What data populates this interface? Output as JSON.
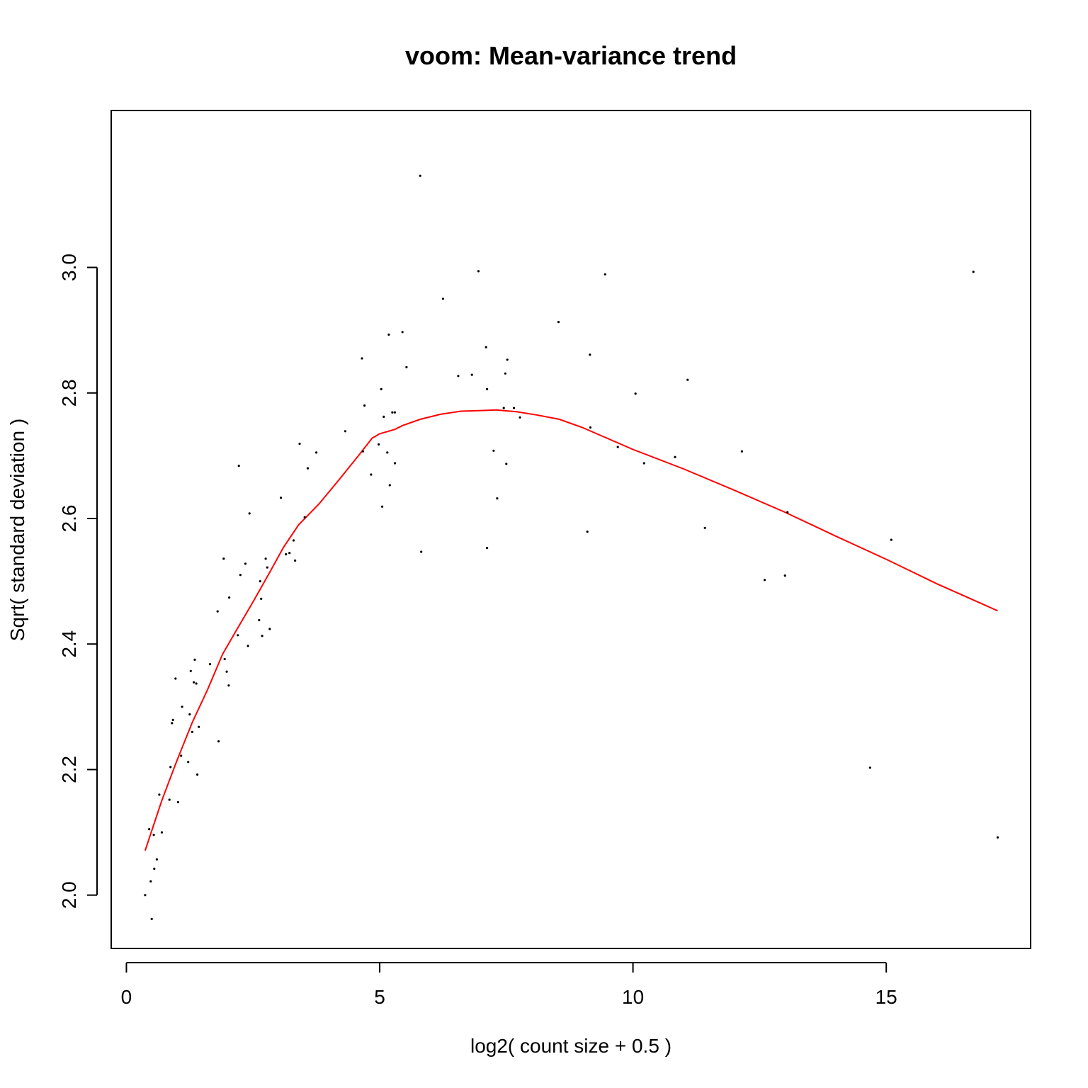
{
  "chart_data": {
    "type": "scatter",
    "title": "voom: Mean-variance trend",
    "xlabel": "log2( count size + 0.5 )",
    "ylabel": "Sqrt( standard deviation )",
    "xlim": [
      -0.3,
      17.85
    ],
    "ylim": [
      1.915,
      3.25
    ],
    "x_ticks": [
      0,
      5,
      10,
      15
    ],
    "y_ticks": [
      2.0,
      2.2,
      2.4,
      2.6,
      2.8,
      3.0
    ],
    "x_tick_labels": [
      "0",
      "5",
      "10",
      "15"
    ],
    "y_tick_labels": [
      "2.0",
      "2.2",
      "2.4",
      "2.6",
      "2.8",
      "3.0"
    ],
    "grid": false,
    "colors": {
      "points": "#000000",
      "trend": "#ff0000"
    },
    "series": [
      {
        "type": "scatter",
        "points": [
          [
            0.37,
            2.0
          ],
          [
            0.45,
            2.105
          ],
          [
            0.48,
            2.022
          ],
          [
            0.5,
            1.962
          ],
          [
            0.54,
            2.096
          ],
          [
            0.55,
            2.042
          ],
          [
            0.6,
            2.057
          ],
          [
            0.65,
            2.16
          ],
          [
            0.7,
            2.1
          ],
          [
            0.85,
            2.152
          ],
          [
            0.87,
            2.204
          ],
          [
            0.9,
            2.274
          ],
          [
            0.92,
            2.279
          ],
          [
            0.97,
            2.345
          ],
          [
            1.02,
            2.148
          ],
          [
            1.08,
            2.222
          ],
          [
            1.1,
            2.3
          ],
          [
            1.22,
            2.212
          ],
          [
            1.25,
            2.288
          ],
          [
            1.27,
            2.357
          ],
          [
            1.3,
            2.26
          ],
          [
            1.33,
            2.339
          ],
          [
            1.35,
            2.375
          ],
          [
            1.38,
            2.337
          ],
          [
            1.4,
            2.192
          ],
          [
            1.43,
            2.268
          ],
          [
            1.65,
            2.368
          ],
          [
            1.8,
            2.452
          ],
          [
            1.82,
            2.245
          ],
          [
            1.92,
            2.536
          ],
          [
            1.94,
            2.376
          ],
          [
            1.98,
            2.356
          ],
          [
            2.02,
            2.334
          ],
          [
            2.03,
            2.474
          ],
          [
            2.2,
            2.414
          ],
          [
            2.22,
            2.684
          ],
          [
            2.25,
            2.51
          ],
          [
            2.35,
            2.528
          ],
          [
            2.4,
            2.397
          ],
          [
            2.43,
            2.608
          ],
          [
            2.62,
            2.438
          ],
          [
            2.64,
            2.5
          ],
          [
            2.66,
            2.472
          ],
          [
            2.68,
            2.413
          ],
          [
            2.75,
            2.536
          ],
          [
            2.78,
            2.522
          ],
          [
            2.83,
            2.424
          ],
          [
            3.05,
            2.633
          ],
          [
            3.15,
            2.543
          ],
          [
            3.22,
            2.545
          ],
          [
            3.3,
            2.565
          ],
          [
            3.33,
            2.533
          ],
          [
            3.42,
            2.719
          ],
          [
            3.52,
            2.602
          ],
          [
            3.58,
            2.68
          ],
          [
            3.75,
            2.705
          ],
          [
            4.32,
            2.739
          ],
          [
            4.65,
            2.855
          ],
          [
            4.67,
            2.707
          ],
          [
            4.7,
            2.78
          ],
          [
            4.83,
            2.67
          ],
          [
            4.98,
            2.718
          ],
          [
            5.03,
            2.806
          ],
          [
            5.05,
            2.619
          ],
          [
            5.08,
            2.762
          ],
          [
            5.15,
            2.705
          ],
          [
            5.18,
            2.893
          ],
          [
            5.2,
            2.653
          ],
          [
            5.25,
            2.769
          ],
          [
            5.3,
            2.769
          ],
          [
            5.3,
            2.688
          ],
          [
            5.45,
            2.897
          ],
          [
            5.53,
            2.841
          ],
          [
            5.8,
            3.146
          ],
          [
            5.82,
            2.547
          ],
          [
            6.25,
            2.95
          ],
          [
            6.55,
            2.827
          ],
          [
            6.82,
            2.829
          ],
          [
            6.95,
            2.994
          ],
          [
            7.1,
            2.873
          ],
          [
            7.12,
            2.806
          ],
          [
            7.12,
            2.553
          ],
          [
            7.25,
            2.708
          ],
          [
            7.32,
            2.632
          ],
          [
            7.45,
            2.776
          ],
          [
            7.48,
            2.831
          ],
          [
            7.5,
            2.687
          ],
          [
            7.52,
            2.853
          ],
          [
            7.65,
            2.776
          ],
          [
            7.77,
            2.761
          ],
          [
            8.53,
            2.913
          ],
          [
            9.1,
            2.579
          ],
          [
            9.15,
            2.861
          ],
          [
            9.16,
            2.745
          ],
          [
            9.45,
            2.989
          ],
          [
            9.7,
            2.714
          ],
          [
            10.05,
            2.799
          ],
          [
            10.22,
            2.688
          ],
          [
            10.83,
            2.698
          ],
          [
            11.08,
            2.821
          ],
          [
            11.42,
            2.585
          ],
          [
            12.15,
            2.707
          ],
          [
            12.6,
            2.502
          ],
          [
            13.0,
            2.509
          ],
          [
            13.05,
            2.61
          ],
          [
            14.68,
            2.203
          ],
          [
            15.1,
            2.566
          ],
          [
            16.72,
            2.993
          ],
          [
            17.2,
            2.092
          ]
        ]
      },
      {
        "type": "line",
        "points": [
          [
            0.37,
            2.071
          ],
          [
            0.7,
            2.151
          ],
          [
            1.0,
            2.215
          ],
          [
            1.3,
            2.275
          ],
          [
            1.6,
            2.327
          ],
          [
            1.9,
            2.384
          ],
          [
            2.2,
            2.426
          ],
          [
            2.5,
            2.467
          ],
          [
            2.8,
            2.51
          ],
          [
            3.1,
            2.554
          ],
          [
            3.4,
            2.59
          ],
          [
            3.8,
            2.623
          ],
          [
            4.2,
            2.662
          ],
          [
            4.6,
            2.702
          ],
          [
            4.85,
            2.728
          ],
          [
            5.0,
            2.735
          ],
          [
            5.3,
            2.742
          ],
          [
            5.45,
            2.748
          ],
          [
            5.8,
            2.758
          ],
          [
            6.2,
            2.766
          ],
          [
            6.6,
            2.771
          ],
          [
            7.0,
            2.772
          ],
          [
            7.3,
            2.773
          ],
          [
            7.7,
            2.77
          ],
          [
            8.1,
            2.765
          ],
          [
            8.55,
            2.758
          ],
          [
            9.0,
            2.745
          ],
          [
            10.0,
            2.71
          ],
          [
            11.0,
            2.679
          ],
          [
            12.0,
            2.645
          ],
          [
            13.0,
            2.61
          ],
          [
            14.0,
            2.572
          ],
          [
            15.0,
            2.535
          ],
          [
            16.0,
            2.496
          ],
          [
            17.2,
            2.453
          ]
        ]
      }
    ]
  }
}
